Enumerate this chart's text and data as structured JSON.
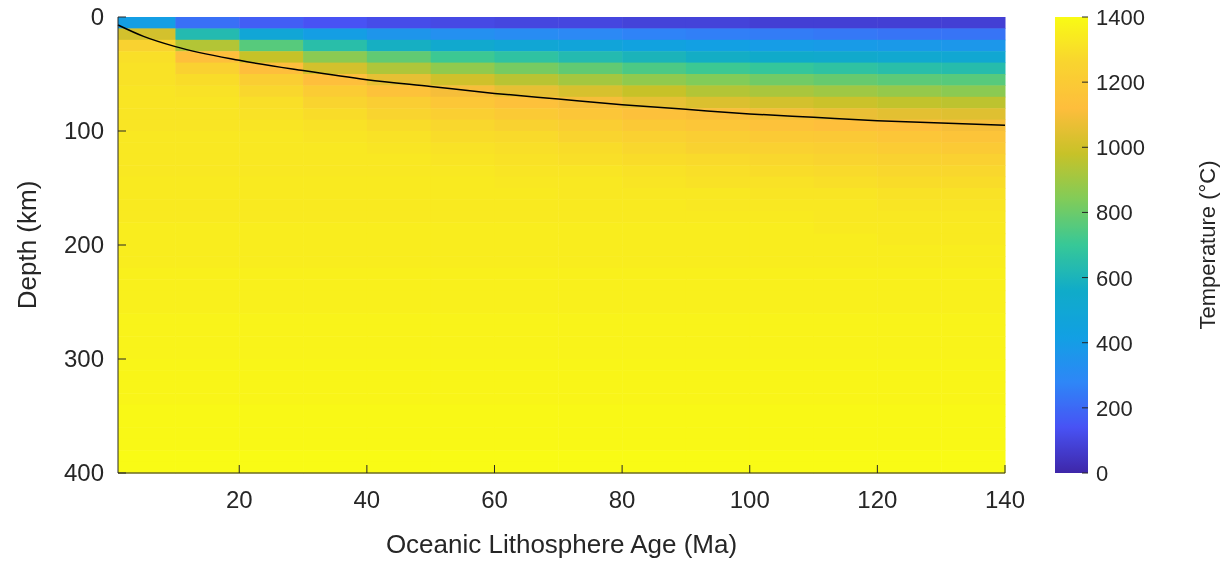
{
  "chart_data": {
    "type": "heatmap",
    "xlabel": "Oceanic Lithosphere Age (Ma)",
    "ylabel": "Depth (km)",
    "clabel": "Temperature (°C)",
    "x": [
      5,
      15,
      25,
      35,
      45,
      55,
      65,
      75,
      85,
      95,
      105,
      115,
      125,
      135
    ],
    "xlim": [
      1,
      140
    ],
    "xticks": [
      20,
      40,
      60,
      80,
      100,
      120,
      140
    ],
    "ylim": [
      400,
      0
    ],
    "yticks": [
      0,
      100,
      200,
      300,
      400
    ],
    "clim": [
      0,
      1400
    ],
    "cticks": [
      0,
      200,
      400,
      600,
      800,
      1000,
      1200,
      1400
    ],
    "cells": [
      [
        410,
        220,
        170,
        140,
        120,
        110,
        100,
        100,
        90,
        90,
        80,
        80,
        80,
        80
      ],
      [
        1010,
        630,
        490,
        410,
        360,
        330,
        310,
        290,
        270,
        260,
        250,
        240,
        230,
        230
      ],
      [
        1250,
        940,
        760,
        650,
        580,
        530,
        500,
        470,
        440,
        420,
        400,
        390,
        380,
        370
      ],
      [
        1300,
        1130,
        980,
        860,
        780,
        710,
        670,
        630,
        600,
        570,
        550,
        540,
        520,
        510
      ],
      [
        1310,
        1240,
        1120,
        1010,
        930,
        870,
        820,
        780,
        740,
        710,
        690,
        670,
        650,
        640
      ],
      [
        1310,
        1290,
        1220,
        1130,
        1060,
        1000,
        950,
        910,
        870,
        840,
        810,
        790,
        770,
        760
      ],
      [
        1320,
        1310,
        1270,
        1210,
        1150,
        1100,
        1060,
        1020,
        980,
        940,
        920,
        900,
        880,
        860
      ],
      [
        1320,
        1320,
        1300,
        1260,
        1220,
        1180,
        1140,
        1100,
        1060,
        1030,
        1010,
        990,
        970,
        960
      ],
      [
        1320,
        1320,
        1310,
        1290,
        1260,
        1230,
        1200,
        1170,
        1140,
        1110,
        1090,
        1070,
        1050,
        1040
      ],
      [
        1320,
        1320,
        1320,
        1310,
        1290,
        1270,
        1250,
        1220,
        1190,
        1170,
        1150,
        1130,
        1120,
        1100
      ],
      [
        1330,
        1330,
        1330,
        1320,
        1310,
        1290,
        1280,
        1260,
        1240,
        1220,
        1200,
        1190,
        1170,
        1160
      ],
      [
        1330,
        1330,
        1330,
        1330,
        1320,
        1310,
        1300,
        1290,
        1270,
        1250,
        1240,
        1230,
        1210,
        1200
      ],
      [
        1330,
        1330,
        1330,
        1330,
        1330,
        1320,
        1310,
        1300,
        1290,
        1280,
        1270,
        1260,
        1250,
        1240
      ],
      [
        1330,
        1330,
        1330,
        1330,
        1330,
        1330,
        1320,
        1320,
        1310,
        1300,
        1290,
        1280,
        1270,
        1270
      ],
      [
        1340,
        1340,
        1340,
        1340,
        1340,
        1340,
        1330,
        1330,
        1320,
        1310,
        1310,
        1300,
        1290,
        1290
      ],
      [
        1340,
        1340,
        1340,
        1340,
        1340,
        1340,
        1340,
        1330,
        1330,
        1330,
        1320,
        1320,
        1310,
        1310
      ],
      [
        1340,
        1340,
        1340,
        1340,
        1340,
        1340,
        1340,
        1340,
        1340,
        1330,
        1330,
        1330,
        1320,
        1320
      ],
      [
        1340,
        1340,
        1340,
        1340,
        1340,
        1340,
        1340,
        1340,
        1340,
        1340,
        1340,
        1330,
        1330,
        1330
      ],
      [
        1350,
        1350,
        1350,
        1350,
        1350,
        1350,
        1350,
        1350,
        1350,
        1350,
        1350,
        1340,
        1340,
        1340
      ],
      [
        1350,
        1350,
        1350,
        1350,
        1350,
        1350,
        1350,
        1350,
        1350,
        1350,
        1350,
        1350,
        1340,
        1340
      ],
      [
        1350,
        1350,
        1350,
        1350,
        1350,
        1350,
        1350,
        1350,
        1350,
        1350,
        1350,
        1350,
        1350,
        1350
      ],
      [
        1350,
        1350,
        1350,
        1350,
        1350,
        1350,
        1350,
        1350,
        1350,
        1350,
        1350,
        1350,
        1350,
        1350
      ],
      [
        1360,
        1360,
        1360,
        1360,
        1360,
        1360,
        1360,
        1360,
        1360,
        1360,
        1360,
        1360,
        1360,
        1360
      ],
      [
        1360,
        1360,
        1360,
        1360,
        1360,
        1360,
        1360,
        1360,
        1360,
        1360,
        1360,
        1360,
        1360,
        1360
      ],
      [
        1360,
        1360,
        1360,
        1360,
        1360,
        1360,
        1360,
        1360,
        1360,
        1360,
        1360,
        1360,
        1360,
        1360
      ],
      [
        1360,
        1360,
        1360,
        1360,
        1360,
        1360,
        1360,
        1360,
        1360,
        1360,
        1360,
        1360,
        1360,
        1360
      ],
      [
        1370,
        1370,
        1370,
        1370,
        1370,
        1370,
        1370,
        1370,
        1370,
        1370,
        1370,
        1370,
        1370,
        1370
      ],
      [
        1370,
        1370,
        1370,
        1370,
        1370,
        1370,
        1370,
        1370,
        1370,
        1370,
        1370,
        1370,
        1370,
        1370
      ],
      [
        1370,
        1370,
        1370,
        1370,
        1370,
        1370,
        1370,
        1370,
        1370,
        1370,
        1370,
        1370,
        1370,
        1370
      ],
      [
        1370,
        1370,
        1370,
        1370,
        1370,
        1370,
        1370,
        1370,
        1370,
        1370,
        1370,
        1370,
        1370,
        1370
      ],
      [
        1380,
        1380,
        1380,
        1380,
        1380,
        1380,
        1380,
        1380,
        1380,
        1380,
        1380,
        1380,
        1380,
        1380
      ],
      [
        1380,
        1380,
        1380,
        1380,
        1380,
        1380,
        1380,
        1380,
        1380,
        1380,
        1380,
        1380,
        1380,
        1380
      ],
      [
        1380,
        1380,
        1380,
        1380,
        1380,
        1380,
        1380,
        1380,
        1380,
        1380,
        1380,
        1380,
        1380,
        1380
      ],
      [
        1380,
        1380,
        1380,
        1380,
        1380,
        1380,
        1380,
        1380,
        1380,
        1380,
        1380,
        1380,
        1380,
        1380
      ],
      [
        1390,
        1390,
        1390,
        1390,
        1390,
        1390,
        1390,
        1390,
        1390,
        1390,
        1390,
        1390,
        1390,
        1390
      ],
      [
        1390,
        1390,
        1390,
        1390,
        1390,
        1390,
        1390,
        1390,
        1390,
        1390,
        1390,
        1390,
        1390,
        1390
      ],
      [
        1390,
        1390,
        1390,
        1390,
        1390,
        1390,
        1390,
        1390,
        1390,
        1390,
        1390,
        1390,
        1390,
        1390
      ],
      [
        1390,
        1390,
        1390,
        1390,
        1390,
        1390,
        1390,
        1390,
        1390,
        1390,
        1390,
        1390,
        1390,
        1390
      ],
      [
        1400,
        1400,
        1400,
        1400,
        1400,
        1400,
        1400,
        1400,
        1400,
        1400,
        1400,
        1400,
        1400,
        1400
      ],
      [
        1400,
        1400,
        1400,
        1400,
        1400,
        1400,
        1400,
        1400,
        1400,
        1400,
        1400,
        1400,
        1400,
        1400
      ]
    ],
    "series": [
      {
        "type": "line",
        "color": "#000000",
        "x": [
          1,
          5,
          10,
          20,
          30,
          40,
          50,
          60,
          70,
          80,
          90,
          100,
          110,
          120,
          130,
          140
        ],
        "values": [
          7,
          17,
          26,
          38,
          47,
          55,
          61,
          67,
          72,
          77,
          81,
          85,
          88,
          91,
          93,
          95
        ]
      }
    ]
  }
}
